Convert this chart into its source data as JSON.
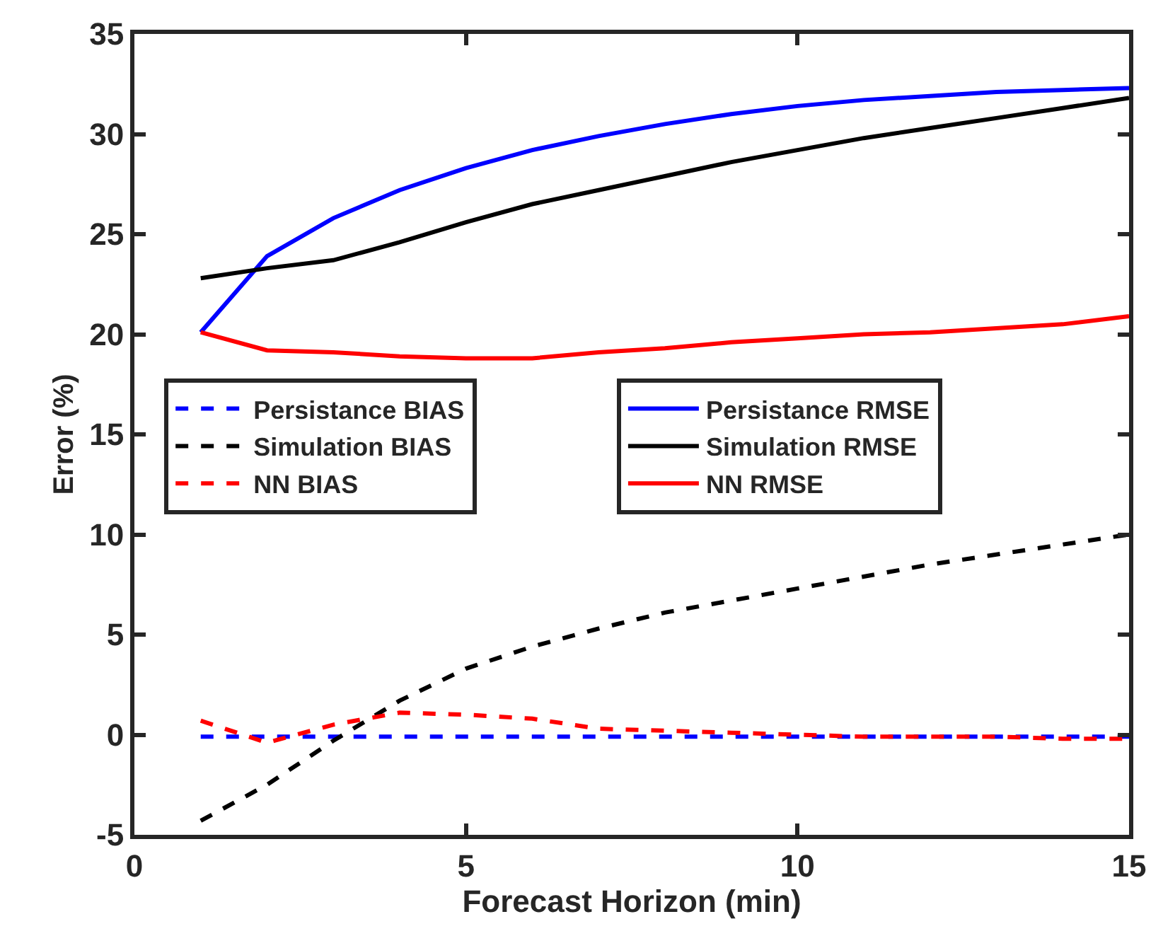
{
  "chart_data": {
    "type": "line",
    "xlabel": "Forecast Horizon (min)",
    "ylabel": "Error (%)",
    "x": [
      1,
      2,
      3,
      4,
      5,
      6,
      7,
      8,
      9,
      10,
      11,
      12,
      13,
      14,
      15
    ],
    "xlim": [
      0,
      15
    ],
    "xticks": [
      0,
      5,
      10,
      15
    ],
    "ylim": [
      -5,
      35
    ],
    "yticks": [
      -5,
      0,
      5,
      10,
      15,
      20,
      25,
      30,
      35
    ],
    "legend": "left",
    "marker": "none",
    "series": [
      {
        "name": "Persistance BIAS",
        "color": "#0000ff",
        "line_style": "dashed",
        "values": [
          -0.1,
          -0.1,
          -0.1,
          -0.1,
          -0.1,
          -0.1,
          -0.1,
          -0.1,
          -0.1,
          -0.1,
          -0.1,
          -0.1,
          -0.1,
          -0.1,
          -0.1
        ]
      },
      {
        "name": "Persistance RMSE",
        "color": "#0000ff",
        "line_style": "solid",
        "values": [
          20.1,
          23.9,
          25.8,
          27.2,
          28.3,
          29.2,
          29.9,
          30.5,
          31.0,
          31.4,
          31.7,
          31.9,
          32.1,
          32.2,
          32.3
        ]
      },
      {
        "name": "Simulation BIAS",
        "color": "#000000",
        "line_style": "dashed",
        "values": [
          -4.3,
          -2.5,
          -0.3,
          1.7,
          3.3,
          4.4,
          5.3,
          6.1,
          6.7,
          7.3,
          7.9,
          8.5,
          9.0,
          9.5,
          10.0
        ]
      },
      {
        "name": "Simulation RMSE",
        "color": "#000000",
        "line_style": "solid",
        "values": [
          22.8,
          23.3,
          23.7,
          24.6,
          25.6,
          26.5,
          27.2,
          27.9,
          28.6,
          29.2,
          29.8,
          30.3,
          30.8,
          31.3,
          31.8
        ]
      },
      {
        "name": "NN BIAS",
        "color": "#ff0000",
        "line_style": "dashed",
        "values": [
          0.7,
          -0.4,
          0.5,
          1.1,
          1.0,
          0.8,
          0.3,
          0.2,
          0.1,
          0.0,
          -0.1,
          -0.1,
          -0.1,
          -0.2,
          -0.2
        ]
      },
      {
        "name": "NN RMSE",
        "color": "#ff0000",
        "line_style": "solid",
        "values": [
          20.1,
          19.2,
          19.1,
          18.9,
          18.8,
          18.8,
          19.1,
          19.3,
          19.6,
          19.8,
          20.0,
          20.1,
          20.3,
          20.5,
          20.9
        ]
      }
    ]
  }
}
